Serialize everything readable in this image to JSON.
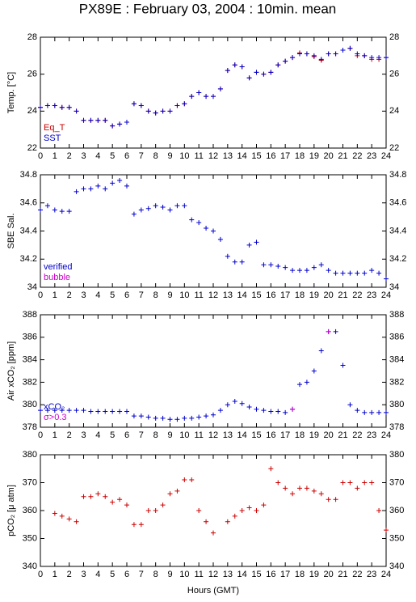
{
  "title": "PX89E : February 03, 2004 : 10min. mean",
  "x_label": "Hours (GMT)",
  "chart_data": [
    {
      "type": "scatter",
      "y_label": "Temp. [°C]",
      "xlim": [
        0,
        24
      ],
      "ylim": [
        22,
        28
      ],
      "xticks": [
        0,
        1,
        2,
        3,
        4,
        5,
        6,
        7,
        8,
        9,
        10,
        11,
        12,
        13,
        14,
        15,
        16,
        17,
        18,
        19,
        20,
        21,
        22,
        23,
        24
      ],
      "yticks": [
        22,
        24,
        26,
        28
      ],
      "x": [
        0,
        0.5,
        1,
        1.5,
        2,
        2.5,
        3,
        3.5,
        4,
        4.5,
        5,
        5.5,
        6,
        6.5,
        7,
        7.5,
        8,
        8.5,
        9,
        9.5,
        10,
        10.5,
        11,
        11.5,
        12,
        12.5,
        13,
        13.5,
        14,
        14.5,
        15,
        15.5,
        16,
        16.5,
        17,
        17.5,
        18,
        18.5,
        19,
        19.5,
        20,
        20.5,
        21,
        21.5,
        22,
        22.5,
        23,
        23.5,
        24
      ],
      "series": [
        {
          "name": "Eq_T",
          "color": "#cc0000",
          "values": [
            24.2,
            24.3,
            24.3,
            24.2,
            24.2,
            24.0,
            23.5,
            23.5,
            23.5,
            23.5,
            23.2,
            23.3,
            23.4,
            24.4,
            24.3,
            24.0,
            23.9,
            24.0,
            24.0,
            24.3,
            24.4,
            24.8,
            25.0,
            24.8,
            24.8,
            25.2,
            26.2,
            26.5,
            26.4,
            25.8,
            26.1,
            26.0,
            26.1,
            26.5,
            26.7,
            26.9,
            27.15,
            27.1,
            26.95,
            26.75,
            27.1,
            27.1,
            27.3,
            27.4,
            27.0,
            27.0,
            26.8,
            26.8,
            26.9
          ]
        },
        {
          "name": "SST",
          "color": "#0000cc",
          "values": [
            24.2,
            24.3,
            24.3,
            24.2,
            24.2,
            24.0,
            23.5,
            23.5,
            23.5,
            23.5,
            23.2,
            23.3,
            23.4,
            24.4,
            24.3,
            24.0,
            23.9,
            24.0,
            24.0,
            24.3,
            24.4,
            24.8,
            25.0,
            24.8,
            24.8,
            25.2,
            26.2,
            26.5,
            26.4,
            25.8,
            26.1,
            26.0,
            26.1,
            26.5,
            26.7,
            26.9,
            27.1,
            27.1,
            27.0,
            26.8,
            27.1,
            27.1,
            27.3,
            27.4,
            27.1,
            27.0,
            26.9,
            26.9,
            26.9
          ]
        }
      ]
    },
    {
      "type": "scatter",
      "y_label": "SBE Sal.",
      "xlim": [
        0,
        24
      ],
      "ylim": [
        34,
        34.8
      ],
      "xticks": [
        0,
        1,
        2,
        3,
        4,
        5,
        6,
        7,
        8,
        9,
        10,
        11,
        12,
        13,
        14,
        15,
        16,
        17,
        18,
        19,
        20,
        21,
        22,
        23,
        24
      ],
      "yticks": [
        34,
        34.2,
        34.4,
        34.6,
        34.8
      ],
      "x": [
        0,
        0.5,
        1,
        1.5,
        2,
        2.5,
        3,
        3.5,
        4,
        4.5,
        5,
        5.5,
        6,
        6.5,
        7,
        7.5,
        8,
        8.5,
        9,
        9.5,
        10,
        10.5,
        11,
        11.5,
        12,
        12.5,
        13,
        13.5,
        14,
        14.5,
        15,
        15.5,
        16,
        16.5,
        17,
        17.5,
        18,
        18.5,
        19,
        19.5,
        20,
        20.5,
        21,
        21.5,
        22,
        22.5,
        23,
        23.5,
        24
      ],
      "series": [
        {
          "name": "verified",
          "color": "#0000cc",
          "values": [
            34.55,
            34.58,
            34.55,
            34.54,
            34.54,
            34.68,
            34.7,
            34.7,
            34.72,
            34.7,
            34.74,
            34.76,
            34.72,
            34.52,
            34.55,
            34.56,
            34.58,
            34.57,
            34.55,
            34.58,
            34.58,
            34.48,
            34.46,
            34.42,
            34.4,
            34.34,
            34.22,
            34.18,
            34.18,
            34.3,
            34.32,
            34.16,
            34.16,
            34.15,
            34.14,
            34.12,
            34.12,
            34.12,
            34.14,
            34.16,
            34.12,
            34.1,
            34.1,
            34.1,
            34.1,
            34.1,
            34.12,
            34.1,
            34.06
          ]
        },
        {
          "name": "bubble",
          "color": "#cc00cc",
          "values": [
            null,
            null,
            null,
            null,
            null,
            null,
            null,
            null,
            null,
            null,
            null,
            null,
            null,
            null,
            null,
            null,
            null,
            null,
            null,
            null,
            null,
            null,
            null,
            null,
            null,
            null,
            null,
            null,
            null,
            null,
            null,
            null,
            null,
            null,
            null,
            null,
            null,
            null,
            null,
            null,
            null,
            null,
            null,
            null,
            null,
            null,
            null,
            null,
            null
          ]
        }
      ]
    },
    {
      "type": "scatter",
      "y_label": "Air xCO₂ [ppm]",
      "xlim": [
        0,
        24
      ],
      "ylim": [
        378,
        388
      ],
      "xticks": [
        0,
        1,
        2,
        3,
        4,
        5,
        6,
        7,
        8,
        9,
        10,
        11,
        12,
        13,
        14,
        15,
        16,
        17,
        18,
        19,
        20,
        21,
        22,
        23,
        24
      ],
      "yticks": [
        378,
        380,
        382,
        384,
        386,
        388
      ],
      "x": [
        0,
        0.5,
        1,
        1.5,
        2,
        2.5,
        3,
        3.5,
        4,
        4.5,
        5,
        5.5,
        6,
        6.5,
        7,
        7.5,
        8,
        8.5,
        9,
        9.5,
        10,
        10.5,
        11,
        11.5,
        12,
        12.5,
        13,
        13.5,
        14,
        14.5,
        15,
        15.5,
        16,
        16.5,
        17,
        17.5,
        18,
        18.5,
        19,
        19.5,
        20,
        20.5,
        21,
        21.5,
        22,
        22.5,
        23,
        23.5,
        24
      ],
      "series": [
        {
          "name": "xCO₂",
          "color": "#0000cc",
          "values": [
            379.5,
            379.5,
            379.5,
            379.5,
            379.5,
            379.5,
            379.5,
            379.4,
            379.4,
            379.4,
            379.4,
            379.4,
            379.4,
            379.0,
            379.0,
            378.9,
            378.8,
            378.8,
            378.7,
            378.7,
            378.8,
            378.8,
            378.9,
            379.0,
            379.1,
            379.5,
            380.0,
            380.3,
            380.1,
            379.8,
            379.6,
            379.5,
            379.4,
            379.4,
            379.3,
            379.6,
            381.8,
            382.0,
            383.0,
            384.8,
            386.5,
            386.5,
            383.5,
            380.0,
            379.5,
            379.3,
            379.3,
            379.3,
            379.3
          ]
        },
        {
          "name": "σ>0.3",
          "color": "#cc00cc",
          "values": [
            null,
            null,
            null,
            null,
            null,
            null,
            null,
            null,
            null,
            null,
            null,
            null,
            null,
            null,
            null,
            null,
            null,
            null,
            null,
            null,
            null,
            null,
            null,
            null,
            null,
            null,
            null,
            null,
            null,
            null,
            null,
            null,
            null,
            null,
            null,
            379.6,
            null,
            null,
            null,
            null,
            386.5,
            null,
            null,
            null,
            null,
            null,
            null,
            null,
            null
          ]
        }
      ]
    },
    {
      "type": "scatter",
      "y_label": "pCO₂ [μ atm]",
      "xlim": [
        0,
        24
      ],
      "ylim": [
        340,
        380
      ],
      "xticks": [
        0,
        1,
        2,
        3,
        4,
        5,
        6,
        7,
        8,
        9,
        10,
        11,
        12,
        13,
        14,
        15,
        16,
        17,
        18,
        19,
        20,
        21,
        22,
        23,
        24
      ],
      "yticks": [
        340,
        350,
        360,
        370,
        380
      ],
      "x": [
        0,
        0.5,
        1,
        1.5,
        2,
        2.5,
        3,
        3.5,
        4,
        4.5,
        5,
        5.5,
        6,
        6.5,
        7,
        7.5,
        8,
        8.5,
        9,
        9.5,
        10,
        10.5,
        11,
        11.5,
        12,
        12.5,
        13,
        13.5,
        14,
        14.5,
        15,
        15.5,
        16,
        16.5,
        17,
        17.5,
        18,
        18.5,
        19,
        19.5,
        20,
        20.5,
        21,
        21.5,
        22,
        22.5,
        23,
        23.5,
        24
      ],
      "series": [
        {
          "name": "pCO₂",
          "color": "#cc0000",
          "values": [
            null,
            null,
            359,
            358,
            357,
            356,
            365,
            365,
            366,
            365,
            363,
            364,
            362,
            355,
            355,
            360,
            360,
            362,
            366,
            367,
            371,
            371,
            360,
            356,
            352,
            null,
            356,
            358,
            360,
            361,
            360,
            362,
            375,
            370,
            368,
            366,
            368,
            368,
            367,
            366,
            364,
            364,
            370,
            370,
            368,
            370,
            370,
            360,
            353
          ]
        }
      ]
    }
  ]
}
